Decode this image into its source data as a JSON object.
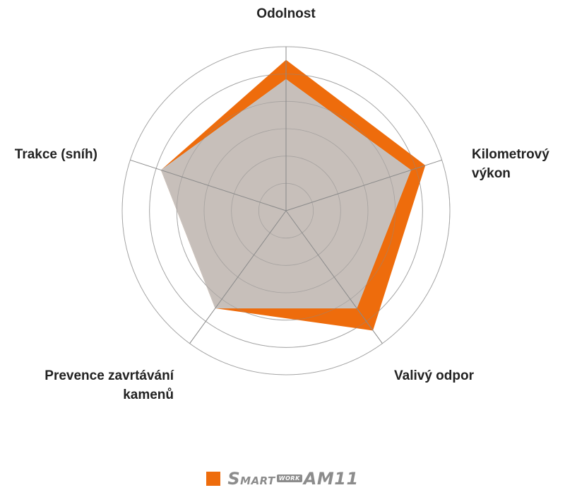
{
  "chart_data": {
    "type": "radar",
    "axes": [
      {
        "label_lines": [
          "Odolnost"
        ]
      },
      {
        "label_lines": [
          "Kilometrový",
          "výkon"
        ]
      },
      {
        "label_lines": [
          "Valivý odpor"
        ]
      },
      {
        "label_lines": [
          "Prevence zavrtávání",
          "kamenů"
        ]
      },
      {
        "label_lines": [
          "Trakce (sníh)"
        ]
      }
    ],
    "rmax": 6,
    "rings": 6,
    "series": [
      {
        "name": "SmartWork AM11",
        "values": [
          5.5,
          5.35,
          5.4,
          4.4,
          4.8
        ],
        "color": "#ee6c0c"
      },
      {
        "values": [
          4.8,
          4.8,
          4.4,
          4.4,
          4.8
        ],
        "color": "#c4c4c4"
      }
    ],
    "legend_position": "bottom"
  },
  "legend": {
    "color": "#ee6c0c",
    "part1_big": "S",
    "part1_small": "MART",
    "tag": "WORK",
    "part2": "AM11"
  }
}
